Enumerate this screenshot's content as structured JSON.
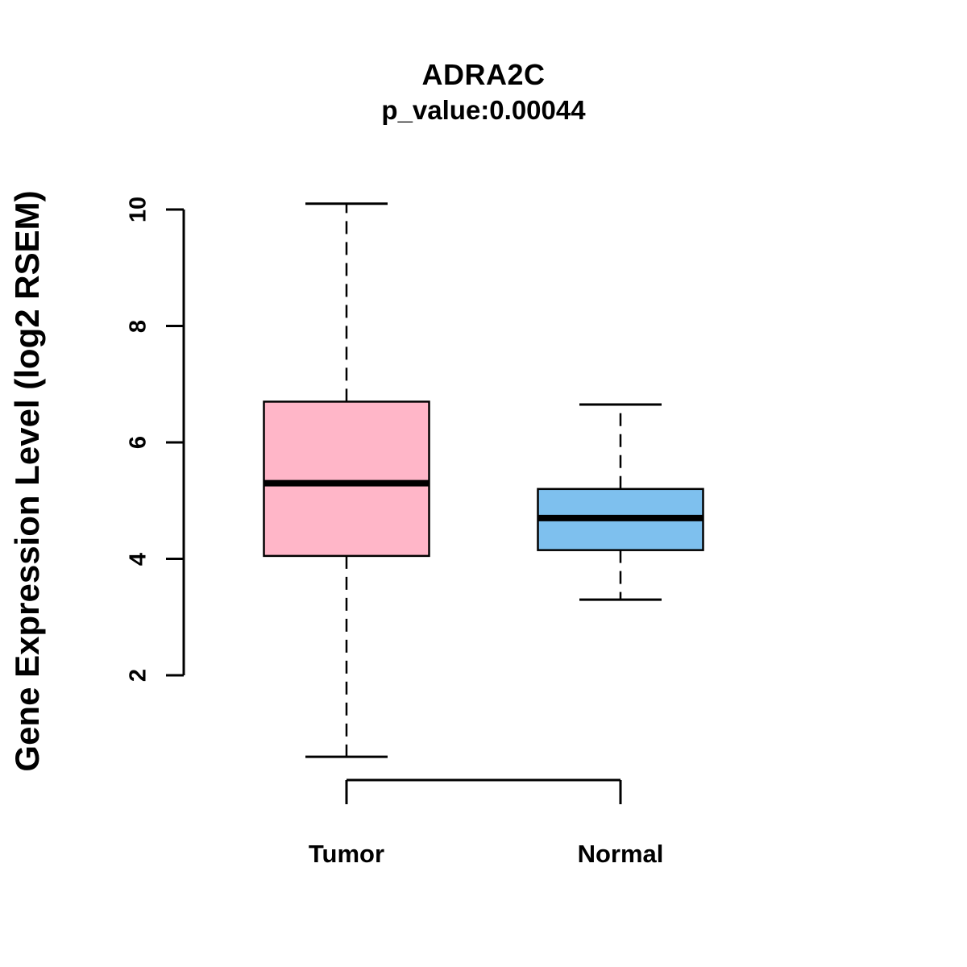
{
  "chart_data": {
    "type": "boxplot",
    "title": "ADRA2C",
    "subtitle": "p_value:0.00044",
    "ylabel": "Gene Expression Level (log2 RSEM)",
    "xlabel": "",
    "categories": [
      "Tumor",
      "Normal"
    ],
    "series": [
      {
        "name": "Tumor",
        "color": "#FFB6C8",
        "min": 0.6,
        "q1": 4.05,
        "median": 5.3,
        "q3": 6.7,
        "max": 10.1
      },
      {
        "name": "Normal",
        "color": "#7EC0EE",
        "min": 3.3,
        "q1": 4.15,
        "median": 4.7,
        "q3": 5.2,
        "max": 6.65
      }
    ],
    "yticks": [
      2,
      4,
      6,
      8,
      10
    ],
    "ylim": [
      0.4,
      10.3
    ],
    "grid": "off",
    "legend": "none",
    "axis_color": "#000000",
    "median_color": "#000000"
  }
}
